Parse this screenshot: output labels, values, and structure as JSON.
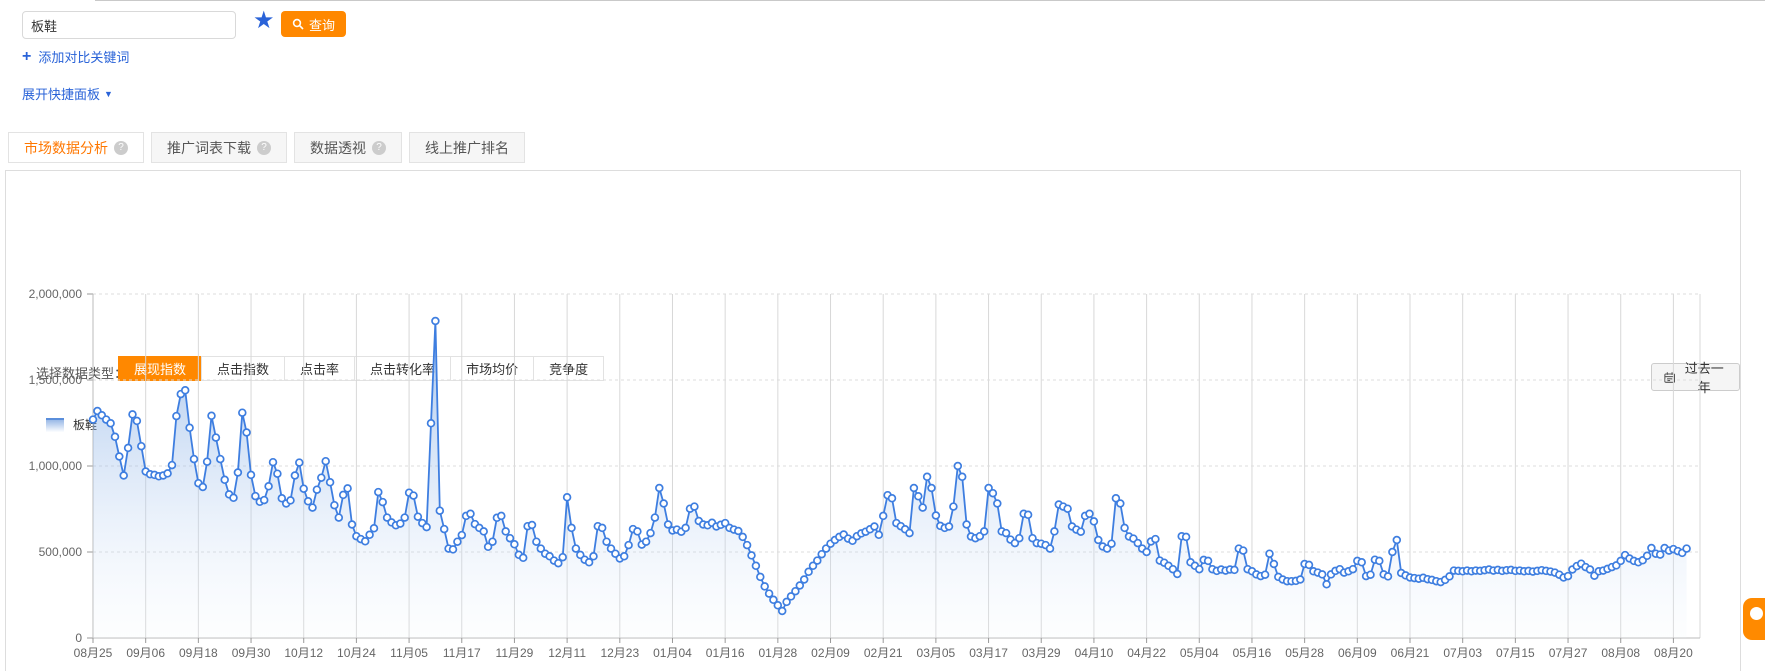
{
  "search": {
    "keyword": "板鞋",
    "query_label": "查询",
    "add_compare_label": "添加对比关键词",
    "expand_panel_label": "展开快捷面板"
  },
  "tabs": [
    {
      "label": "市场数据分析",
      "active": true,
      "has_help": true
    },
    {
      "label": "推广词表下载",
      "active": false,
      "has_help": true
    },
    {
      "label": "数据透视",
      "active": false,
      "has_help": true
    },
    {
      "label": "线上推广排名",
      "active": false,
      "has_help": false
    }
  ],
  "data_type_selector": {
    "label": "选择数据类型：",
    "options": [
      "展现指数",
      "点击指数",
      "点击率",
      "点击转化率",
      "市场均价",
      "竞争度"
    ],
    "active_index": 0
  },
  "date_range_label": "过去一年",
  "legend_label": "板鞋",
  "colors": {
    "accent_orange": "#ff8800",
    "link_blue": "#2a63d8",
    "active_tab_text": "#ff7700",
    "line": "#3e7ee0",
    "area_top": "rgba(90,145,220,0.55)",
    "area_bottom": "rgba(237,244,252,0.12)",
    "grid_vertical": "#d8d8d8",
    "grid_horizontal": "#dddddd",
    "axis": "#bbbbbb",
    "tick_text": "#666666"
  },
  "chart_data": {
    "type": "area",
    "series_name": "板鞋",
    "metric": "展现指数",
    "ylim": [
      0,
      2000000
    ],
    "y_ticks": [
      0,
      500000,
      1000000,
      1500000,
      2000000
    ],
    "y_tick_labels": [
      "0",
      "500,000",
      "1,000,000",
      "1,500,000",
      "2,000,000"
    ],
    "x_tick_labels": [
      "08月25",
      "09月06",
      "09月18",
      "09月30",
      "10月12",
      "10月24",
      "11月05",
      "11月17",
      "11月29",
      "12月11",
      "12月23",
      "01月04",
      "01月16",
      "01月28",
      "02月09",
      "02月21",
      "03月05",
      "03月17",
      "03月29",
      "04月10",
      "04月22",
      "05月04",
      "05月16",
      "05月28",
      "06月09",
      "06月21",
      "07月03",
      "07月15",
      "07月27",
      "08月08",
      "08月20"
    ],
    "points_per_tick": 12,
    "grid": true,
    "legend_position": "top-left",
    "values": [
      1270000,
      1320000,
      1295000,
      1270000,
      1248000,
      1170000,
      1055000,
      945000,
      1105000,
      1300000,
      1262000,
      1115000,
      968000,
      952000,
      948000,
      940000,
      945000,
      957000,
      1005000,
      1290000,
      1418000,
      1440000,
      1222000,
      1040000,
      900000,
      878000,
      1025000,
      1292000,
      1165000,
      1040000,
      920000,
      835000,
      815000,
      962000,
      1310000,
      1195000,
      948000,
      825000,
      792000,
      802000,
      882000,
      1022000,
      955000,
      812000,
      782000,
      800000,
      945000,
      1020000,
      868000,
      795000,
      758000,
      862000,
      932000,
      1028000,
      905000,
      772000,
      700000,
      832000,
      870000,
      660000,
      592000,
      575000,
      562000,
      600000,
      638000,
      848000,
      790000,
      700000,
      672000,
      655000,
      665000,
      700000,
      845000,
      828000,
      705000,
      668000,
      645000,
      1248000,
      1843000,
      740000,
      633000,
      520000,
      515000,
      560000,
      598000,
      710000,
      722000,
      662000,
      640000,
      620000,
      530000,
      560000,
      699000,
      710000,
      620000,
      580000,
      545000,
      484000,
      466000,
      650000,
      657000,
      560000,
      520000,
      490000,
      475000,
      450000,
      435000,
      470000,
      818000,
      640000,
      520000,
      483000,
      455000,
      440000,
      475000,
      650000,
      640000,
      560000,
      520000,
      490000,
      462000,
      475000,
      540000,
      633000,
      620000,
      543000,
      560000,
      610000,
      700000,
      872000,
      782000,
      660000,
      625000,
      630000,
      618000,
      640000,
      752000,
      764000,
      680000,
      660000,
      655000,
      670000,
      648000,
      658000,
      668000,
      640000,
      630000,
      622000,
      588000,
      540000,
      480000,
      420000,
      355000,
      300000,
      258000,
      222000,
      190000,
      157000,
      210000,
      242000,
      272000,
      305000,
      340000,
      385000,
      420000,
      450000,
      487000,
      520000,
      548000,
      570000,
      588000,
      602000,
      578000,
      565000,
      592000,
      608000,
      618000,
      632000,
      648000,
      600000,
      710000,
      830000,
      812000,
      668000,
      650000,
      632000,
      610000,
      872000,
      824000,
      758000,
      937000,
      872000,
      712000,
      652000,
      640000,
      648000,
      764000,
      1000000,
      937000,
      660000,
      590000,
      580000,
      592000,
      620000,
      872000,
      842000,
      782000,
      620000,
      610000,
      572000,
      552000,
      580000,
      722000,
      716000,
      580000,
      552000,
      548000,
      540000,
      520000,
      620000,
      776000,
      764000,
      752000,
      648000,
      630000,
      618000,
      710000,
      722000,
      678000,
      570000,
      532000,
      520000,
      548000,
      812000,
      782000,
      640000,
      590000,
      578000,
      552000,
      520000,
      500000,
      561000,
      575000,
      450000,
      438000,
      420000,
      400000,
      372000,
      591000,
      588000,
      440000,
      420000,
      400000,
      454000,
      448000,
      400000,
      390000,
      398000,
      392000,
      398000,
      396000,
      520000,
      508000,
      400000,
      388000,
      370000,
      360000,
      368000,
      490000,
      430000,
      355000,
      340000,
      330000,
      330000,
      332000,
      340000,
      430000,
      425000,
      388000,
      380000,
      370000,
      312000,
      370000,
      390000,
      400000,
      380000,
      388000,
      400000,
      448000,
      440000,
      360000,
      368000,
      455000,
      448000,
      370000,
      358000,
      500000,
      570000,
      378000,
      364000,
      352000,
      348000,
      345000,
      350000,
      342000,
      338000,
      330000,
      325000,
      338000,
      358000,
      392000,
      390000,
      388000,
      392000,
      388000,
      392000,
      390000,
      394000,
      398000,
      392000,
      396000,
      390000,
      394000,
      396000,
      390000,
      392000,
      388000,
      390000,
      386000,
      390000,
      394000,
      390000,
      386000,
      380000,
      368000,
      352000,
      360000,
      398000,
      418000,
      432000,
      412000,
      398000,
      362000,
      388000,
      392000,
      402000,
      412000,
      422000,
      448000,
      482000,
      462000,
      448000,
      440000,
      452000,
      478000,
      523000,
      490000,
      485000,
      523000,
      508000,
      517000,
      505000,
      495000,
      520000
    ]
  }
}
